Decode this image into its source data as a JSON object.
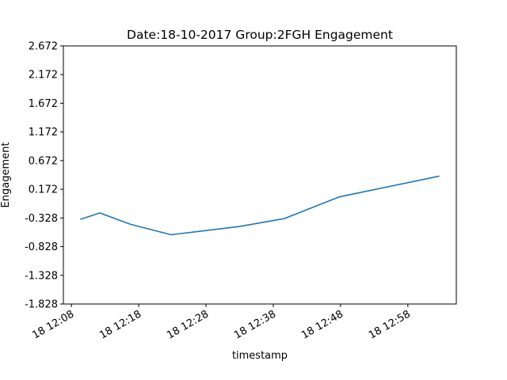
{
  "chart_data": {
    "type": "line",
    "title": "Date:18-10-2017 Group:2FGH Engagement",
    "xlabel": "timestamp",
    "ylabel": "Engagement",
    "x_ticks": [
      "18 12:08",
      "18 12:18",
      "18 12:28",
      "18 12:38",
      "18 12:48",
      "18 12:58"
    ],
    "x_tick_minutes": [
      0,
      10,
      20,
      30,
      40,
      50
    ],
    "xlim_minutes": [
      -1.2,
      57.2
    ],
    "y_ticks": [
      "2.672",
      "2.172",
      "1.672",
      "1.172",
      "0.672",
      "0.172",
      "-0.328",
      "-0.828",
      "-1.328",
      "-1.828"
    ],
    "ylim": [
      -1.828,
      2.672
    ],
    "grid": false,
    "color": "#1f77b4",
    "series": [
      {
        "name": "",
        "x_minutes": [
          1.4,
          4.2,
          8.8,
          14.8,
          24.8,
          31.6,
          39.8,
          54.6
        ],
        "x": [
          "12:09:24",
          "12:12:12",
          "12:16:48",
          "12:22:48",
          "12:32:48",
          "12:39:36",
          "12:47:48",
          "13:02:36"
        ],
        "values": [
          -0.35,
          -0.24,
          -0.44,
          -0.62,
          -0.48,
          -0.34,
          0.04,
          0.4
        ]
      }
    ]
  }
}
